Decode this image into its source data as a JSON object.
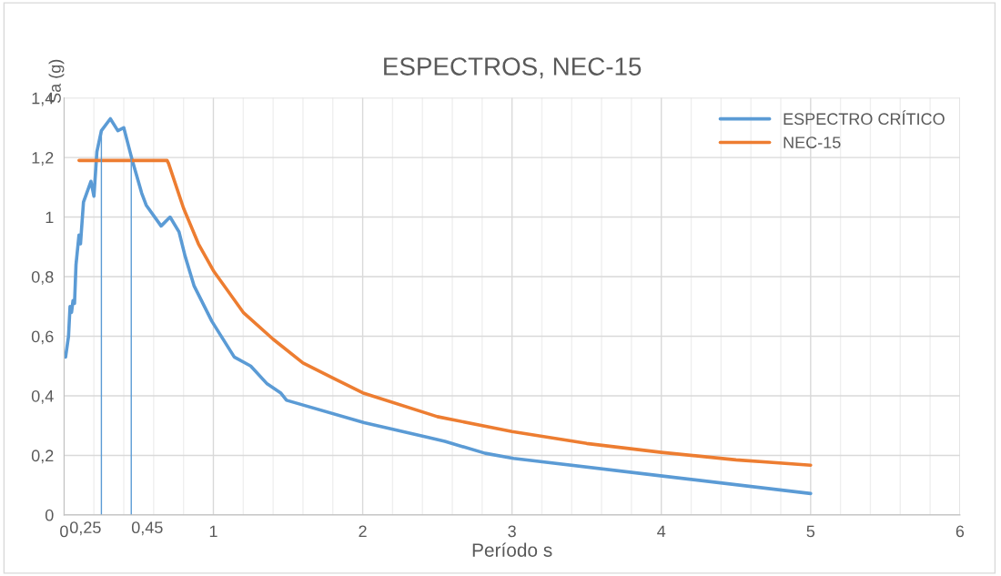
{
  "chart_data": {
    "type": "line",
    "title": "ESPECTROS, NEC-15",
    "xlabel": "Período s",
    "ylabel": "Sa (g)",
    "xlim": [
      0,
      6
    ],
    "ylim": [
      0,
      1.4
    ],
    "xticks": [
      0,
      {
        "value": 0.2,
        "label": null
      },
      {
        "value": 0.4,
        "label": null
      },
      {
        "value": 0.6,
        "label": null
      },
      {
        "value": 0.8,
        "label": null
      },
      1,
      {
        "value": 1.2,
        "label": null
      },
      {
        "value": 1.4,
        "label": null
      },
      {
        "value": 1.6,
        "label": null
      },
      {
        "value": 1.8,
        "label": null
      },
      2,
      {
        "value": 2.2,
        "label": null
      },
      {
        "value": 2.4,
        "label": null
      },
      {
        "value": 2.6,
        "label": null
      },
      {
        "value": 2.8,
        "label": null
      },
      3,
      {
        "value": 3.2,
        "label": null
      },
      {
        "value": 3.4,
        "label": null
      },
      {
        "value": 3.6,
        "label": null
      },
      {
        "value": 3.8,
        "label": null
      },
      4,
      {
        "value": 4.2,
        "label": null
      },
      {
        "value": 4.4,
        "label": null
      },
      {
        "value": 4.6,
        "label": null
      },
      {
        "value": 4.8,
        "label": null
      },
      5,
      {
        "value": 5.2,
        "label": null
      },
      {
        "value": 5.4,
        "label": null
      },
      {
        "value": 5.6,
        "label": null
      },
      {
        "value": 5.8,
        "label": null
      },
      6
    ],
    "yticks": [
      0,
      {
        "value": 0.2,
        "label": "0,2"
      },
      {
        "value": 0.4,
        "label": "0,4"
      },
      {
        "value": 0.6,
        "label": "0,6"
      },
      {
        "value": 0.8,
        "label": "0,8"
      },
      1,
      {
        "value": 1.2,
        "label": "1,2"
      },
      {
        "value": 1.4,
        "label": "1,4"
      }
    ],
    "grid": true,
    "legend": "top right",
    "line_style": "solid",
    "series": [
      {
        "name": "ESPECTRO CRÍTICO",
        "color": "#5b9bd5",
        "x": [
          0,
          0.01,
          0.03,
          0.04,
          0.05,
          0.06,
          0.07,
          0.08,
          0.1,
          0.11,
          0.13,
          0.18,
          0.2,
          0.22,
          0.25,
          0.31,
          0.36,
          0.4,
          0.457,
          0.52,
          0.55,
          0.65,
          0.71,
          0.77,
          0.81,
          0.87,
          0.99,
          1.14,
          1.25,
          1.36,
          1.45,
          1.49,
          2.01,
          2.44,
          2.55,
          2.82,
          3.01,
          4.02,
          5.0
        ],
        "values": [
          0.54,
          0.53,
          0.6,
          0.7,
          0.68,
          0.72,
          0.71,
          0.84,
          0.94,
          0.91,
          1.05,
          1.12,
          1.07,
          1.22,
          1.29,
          1.33,
          1.29,
          1.3,
          1.19,
          1.08,
          1.04,
          0.97,
          1.0,
          0.95,
          0.87,
          0.77,
          0.65,
          0.53,
          0.5,
          0.44,
          0.41,
          0.385,
          0.31,
          0.26,
          0.247,
          0.207,
          0.19,
          0.13,
          0.072
        ]
      },
      {
        "name": "NEC-15",
        "color": "#ed7d31",
        "x": [
          0.1,
          0.69,
          0.7,
          0.8,
          0.9,
          1.0,
          1.2,
          1.4,
          1.6,
          1.8,
          2.0,
          2.5,
          3.0,
          3.5,
          4.0,
          4.5,
          5.0
        ],
        "values": [
          1.19,
          1.19,
          1.18,
          1.03,
          0.91,
          0.82,
          0.68,
          0.59,
          0.51,
          0.46,
          0.41,
          0.33,
          0.28,
          0.24,
          0.21,
          0.185,
          0.167
        ]
      }
    ],
    "ref_lines": [
      {
        "axis": "x",
        "value": 0.25,
        "label": "0,25",
        "color": "#5b9bd5"
      },
      {
        "axis": "x",
        "value": 0.45,
        "label": "0,45",
        "color": "#5b9bd5"
      }
    ]
  }
}
